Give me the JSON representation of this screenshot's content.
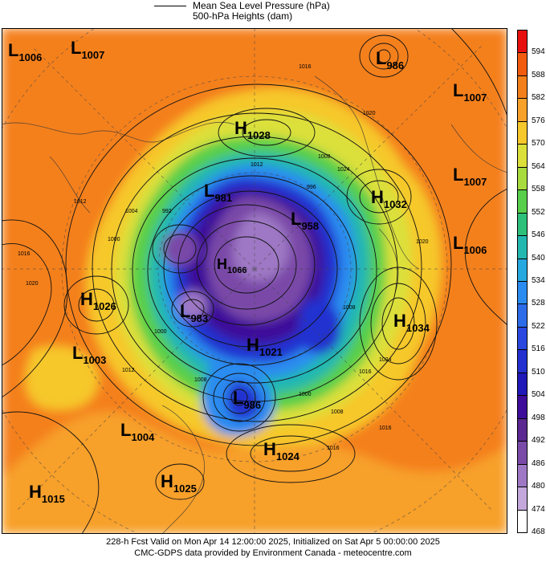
{
  "legend": {
    "line1": "Mean Sea Level Pressure (hPa)",
    "line2": "500-hPa Heights (dam)"
  },
  "footer": {
    "line1": "228-h Fcst Valid on Mon Apr 14 12:00:00 2025, Initialized on Sat Apr  5 00:00:00 2025",
    "line2": "CMC-GDPS data provided by Environment Canada - meteocentre.com"
  },
  "colorbar": {
    "labels": [
      "594",
      "588",
      "582",
      "576",
      "570",
      "564",
      "558",
      "552",
      "546",
      "540",
      "534",
      "528",
      "522",
      "516",
      "510",
      "504",
      "498",
      "492",
      "486",
      "480",
      "474",
      "468"
    ],
    "colors": [
      "#e8100e",
      "#f25a0e",
      "#f4801c",
      "#f7a02a",
      "#f6c82c",
      "#dbe03a",
      "#a8dc3e",
      "#58cf4a",
      "#2cc07a",
      "#22b8b0",
      "#26a8e0",
      "#2a8cf0",
      "#2c6ce8",
      "#2a48e0",
      "#2430d0",
      "#2018b8",
      "#3e0c9a",
      "#5a2890",
      "#7a4aa8",
      "#9e78c4",
      "#c4a8dc",
      "#ffffff"
    ]
  },
  "pressure_centers": [
    {
      "type": "L",
      "value": "1006"
    },
    {
      "type": "L",
      "value": "1007"
    },
    {
      "type": "L",
      "value": "986"
    },
    {
      "type": "L",
      "value": "1007"
    },
    {
      "type": "H",
      "value": "1028"
    },
    {
      "type": "L",
      "value": "1007"
    },
    {
      "type": "H",
      "value": "1032"
    },
    {
      "type": "L",
      "value": "981"
    },
    {
      "type": "L",
      "value": "958"
    },
    {
      "type": "L",
      "value": "1006"
    },
    {
      "type": "H",
      "value": "1026"
    },
    {
      "type": "H",
      "value": "1034"
    },
    {
      "type": "L",
      "value": "983"
    },
    {
      "type": "H",
      "value": "1021"
    },
    {
      "type": "L",
      "value": "1003"
    },
    {
      "type": "L",
      "value": "986"
    },
    {
      "type": "L",
      "value": "1004"
    },
    {
      "type": "H",
      "value": "1024"
    },
    {
      "type": "H",
      "value": "1025"
    },
    {
      "type": "H",
      "value": "1015"
    },
    {
      "type": "H",
      "value": "1066"
    }
  ],
  "isobar_labels": [
    "1016",
    "1012",
    "1020",
    "1024",
    "1004",
    "1000",
    "992",
    "996",
    "1008",
    "1016",
    "1012",
    "1008",
    "1016",
    "1020",
    "1024",
    "1008",
    "1000",
    "1012",
    "1016",
    "1020",
    "1000",
    "1008",
    "1016"
  ]
}
